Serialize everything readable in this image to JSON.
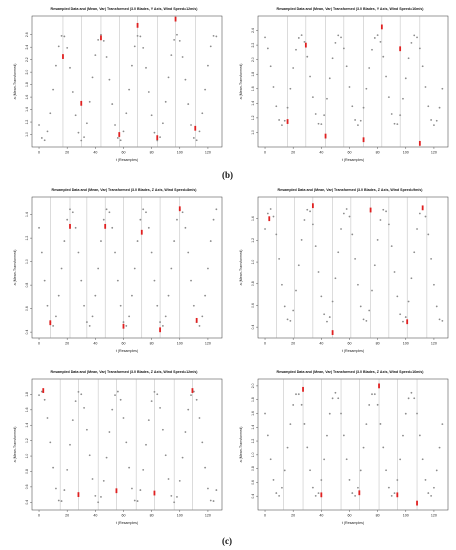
{
  "figure": {
    "label_b": "(b)",
    "label_c": "(c)"
  },
  "chart_data": [
    {
      "type": "scatter",
      "title": "Resampled Data and (Mean, Var) Transformed (3.0 Blades, Y Axis, Wind Speed=12m/s)",
      "xlabel": "t (Resamples)",
      "ylabel": "a (Mean-Transformed)",
      "xlim": [
        -5,
        130
      ],
      "ylim": [
        0.8,
        2.9
      ],
      "xticks": [
        0,
        20,
        40,
        60,
        80,
        100,
        120
      ],
      "yticks": [
        1.0,
        1.2,
        1.4,
        1.6,
        1.8,
        2.0,
        2.2,
        2.4,
        2.6
      ],
      "ytick_labels": [
        "1.0",
        "1.2",
        "1.4",
        "1.6",
        "1.8",
        "2.0",
        "2.2",
        "2.4",
        "2.6"
      ],
      "wave": {
        "x_start": 0,
        "x_end": 126,
        "step": 2,
        "mean": 1.75,
        "amplitude": 0.85,
        "period": 27,
        "phase": 3.92
      },
      "vlines": [
        17,
        30,
        44,
        57,
        70,
        84,
        97,
        111
      ],
      "outliers": [
        {
          "x": 17,
          "y": 2.25
        },
        {
          "x": 30,
          "y": 1.5
        },
        {
          "x": 44,
          "y": 2.55
        },
        {
          "x": 57,
          "y": 1.0
        },
        {
          "x": 70,
          "y": 2.75
        },
        {
          "x": 84,
          "y": 0.95
        },
        {
          "x": 97,
          "y": 2.85
        },
        {
          "x": 111,
          "y": 1.1
        }
      ],
      "grid": false
    },
    {
      "type": "scatter",
      "title": "Resampled Data and (Mean, Var) Transformed (3.0 Blades, Y Axis, Wind Speed=16m/s)",
      "xlabel": "t (Resamples)",
      "ylabel": "a (Mean-Transformed)",
      "xlim": [
        -5,
        130
      ],
      "ylim": [
        0.8,
        2.6
      ],
      "xticks": [
        0,
        20,
        40,
        60,
        80,
        100,
        120
      ],
      "yticks": [
        1.0,
        1.2,
        1.4,
        1.6,
        1.8,
        2.0,
        2.2,
        2.4
      ],
      "ytick_labels": [
        "1.0",
        "1.2",
        "1.4",
        "1.6",
        "1.8",
        "2.0",
        "2.2",
        "2.4"
      ],
      "wave": {
        "x_start": 0,
        "x_end": 126,
        "step": 2,
        "mean": 1.72,
        "amplitude": 0.62,
        "period": 27,
        "phase": 1.9
      },
      "vlines": [
        16,
        29,
        43,
        56,
        70,
        83,
        96,
        110
      ],
      "outliers": [
        {
          "x": 16,
          "y": 1.15
        },
        {
          "x": 29,
          "y": 2.2
        },
        {
          "x": 43,
          "y": 0.95
        },
        {
          "x": 70,
          "y": 0.9
        },
        {
          "x": 83,
          "y": 2.45
        },
        {
          "x": 96,
          "y": 2.15
        },
        {
          "x": 110,
          "y": 0.85
        }
      ],
      "grid": false
    },
    {
      "type": "scatter",
      "title": "Resampled Data and (Mean, Var) Transformed (3.0 Blades, Z Axis, Wind Speed=8m/s)",
      "xlabel": "t (Resamples)",
      "ylabel": "a (Mean-Transformed)",
      "xlim": [
        -5,
        130
      ],
      "ylim": [
        0.35,
        1.55
      ],
      "xticks": [
        0,
        20,
        40,
        60,
        80,
        100,
        120
      ],
      "yticks": [
        0.4,
        0.6,
        0.8,
        1.0,
        1.2,
        1.4
      ],
      "ytick_labels": [
        "0.4",
        "0.6",
        "0.8",
        "1.0",
        "1.2",
        "1.4"
      ],
      "wave": {
        "x_start": 0,
        "x_end": 126,
        "step": 2,
        "mean": 0.95,
        "amplitude": 0.5,
        "period": 26,
        "phase": 2.4
      },
      "vlines": [
        8,
        22,
        34,
        47,
        60,
        73,
        86,
        100
      ],
      "outliers": [
        {
          "x": 8,
          "y": 0.48
        },
        {
          "x": 22,
          "y": 1.3
        },
        {
          "x": 47,
          "y": 1.3
        },
        {
          "x": 60,
          "y": 0.45
        },
        {
          "x": 73,
          "y": 1.25
        },
        {
          "x": 86,
          "y": 0.42
        },
        {
          "x": 100,
          "y": 1.45
        },
        {
          "x": 112,
          "y": 0.5
        }
      ],
      "grid": false
    },
    {
      "type": "scatter",
      "title": "Resampled Data and (Mean, Var) Transformed (3.0 Blades, Z Axis, Wind Speed=9m/s)",
      "xlabel": "t (Resamples)",
      "ylabel": "a (Mean-Transformed)",
      "xlim": [
        -5,
        130
      ],
      "ylim": [
        0.3,
        1.6
      ],
      "xticks": [
        0,
        20,
        40,
        60,
        80,
        100,
        120
      ],
      "yticks": [
        0.4,
        0.6,
        0.8,
        1.0,
        1.2,
        1.4
      ],
      "ytick_labels": [
        "0.4",
        "0.6",
        "0.8",
        "1.0",
        "1.2",
        "1.4"
      ],
      "wave": {
        "x_start": 0,
        "x_end": 126,
        "step": 2,
        "mean": 0.97,
        "amplitude": 0.52,
        "period": 27,
        "phase": 0.7
      },
      "vlines": [
        8,
        21,
        34,
        48,
        61,
        75,
        88,
        101,
        115
      ],
      "outliers": [
        {
          "x": 3,
          "y": 1.4
        },
        {
          "x": 34,
          "y": 1.52
        },
        {
          "x": 48,
          "y": 0.35
        },
        {
          "x": 75,
          "y": 1.48
        },
        {
          "x": 101,
          "y": 0.45
        },
        {
          "x": 112,
          "y": 1.5
        }
      ],
      "grid": false
    },
    {
      "type": "scatter",
      "title": "Resampled Data and (Mean, Var) Transformed (3.0 Blades, Z Axis, Wind Speed=12m/s)",
      "xlabel": "t (Resamples)",
      "ylabel": "a (Mean-Transformed)",
      "xlim": [
        -5,
        130
      ],
      "ylim": [
        0.3,
        2.0
      ],
      "xticks": [
        0,
        20,
        40,
        60,
        80,
        100,
        120
      ],
      "yticks": [
        0.4,
        0.6,
        0.8,
        1.0,
        1.2,
        1.4,
        1.6,
        1.8
      ],
      "ytick_labels": [
        "0.4",
        "0.6",
        "0.8",
        "1.0",
        "1.2",
        "1.4",
        "1.6",
        "1.8"
      ],
      "wave": {
        "x_start": 0,
        "x_end": 126,
        "step": 2,
        "mean": 1.12,
        "amplitude": 0.72,
        "period": 27,
        "phase": 1.2
      },
      "vlines": [
        15,
        28,
        42,
        55,
        69,
        82,
        96,
        109
      ],
      "outliers": [
        {
          "x": 3,
          "y": 1.85
        },
        {
          "x": 28,
          "y": 0.5
        },
        {
          "x": 55,
          "y": 0.55
        },
        {
          "x": 82,
          "y": 0.52
        },
        {
          "x": 109,
          "y": 1.85
        }
      ],
      "grid": false
    },
    {
      "type": "scatter",
      "title": "Resampled Data and (Mean, Var) Transformed (3.0 Blades, Z Axis, Wind Speed=16m/s)",
      "xlabel": "t (Resamples)",
      "ylabel": "a (Mean-Transformed)",
      "xlim": [
        -5,
        130
      ],
      "ylim": [
        0.2,
        2.1
      ],
      "xticks": [
        0,
        20,
        40,
        60,
        80,
        100,
        120
      ],
      "yticks": [
        0.4,
        0.6,
        0.8,
        1.0,
        1.2,
        1.4,
        1.6,
        1.8,
        2.0
      ],
      "ytick_labels": [
        "0.4",
        "0.6",
        "0.8",
        "1.0",
        "1.2",
        "1.4",
        "1.6",
        "1.8",
        "2.0"
      ],
      "wave": {
        "x_start": 0,
        "x_end": 126,
        "step": 2,
        "mean": 1.15,
        "amplitude": 0.75,
        "period": 27,
        "phase": 2.5
      },
      "vlines": [
        13,
        27,
        40,
        54,
        67,
        81,
        94,
        108
      ],
      "outliers": [
        {
          "x": 27,
          "y": 1.95
        },
        {
          "x": 40,
          "y": 0.42
        },
        {
          "x": 67,
          "y": 0.45
        },
        {
          "x": 81,
          "y": 2.0
        },
        {
          "x": 94,
          "y": 0.42
        },
        {
          "x": 108,
          "y": 0.3
        }
      ],
      "grid": false
    }
  ]
}
